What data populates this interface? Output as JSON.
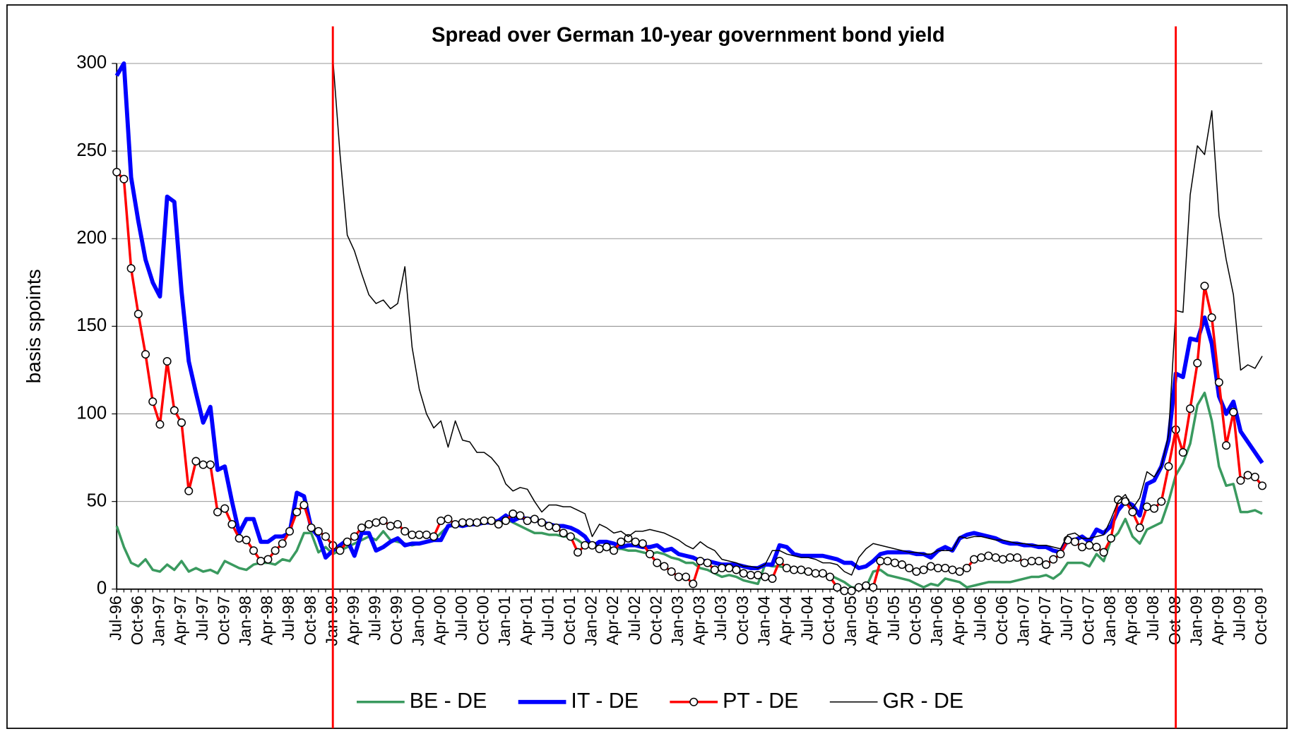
{
  "chart_data": {
    "type": "line",
    "title": "Spread over German 10-year government bond yield",
    "y_label": "basis spoints",
    "ylim": [
      0,
      300
    ],
    "yticks": [
      0,
      50,
      100,
      150,
      200,
      250,
      300
    ],
    "grid": true,
    "legend": "bottom",
    "vlines": [
      30,
      147
    ],
    "vline_color": "#ff0000",
    "categories": [
      "Jul-96",
      null,
      null,
      "Oct-96",
      null,
      null,
      "Jan-97",
      null,
      null,
      "Apr-97",
      null,
      null,
      "Jul-97",
      null,
      null,
      "Oct-97",
      null,
      null,
      "Jan-98",
      null,
      null,
      "Apr-98",
      null,
      null,
      "Jul-98",
      null,
      null,
      "Oct-98",
      null,
      null,
      "Jan-99",
      null,
      null,
      "Apr-99",
      null,
      null,
      "Jul-99",
      null,
      null,
      "Oct-99",
      null,
      null,
      "Jan-00",
      null,
      null,
      "Apr-00",
      null,
      null,
      "Jul-00",
      null,
      null,
      "Oct-00",
      null,
      null,
      "Jan-01",
      null,
      null,
      "Apr-01",
      null,
      null,
      "Jul-01",
      null,
      null,
      "Oct-01",
      null,
      null,
      "Jan-02",
      null,
      null,
      "Apr-02",
      null,
      null,
      "Jul-02",
      null,
      null,
      "Oct-02",
      null,
      null,
      "Jan-03",
      null,
      null,
      "Apr-03",
      null,
      null,
      "Jul-03",
      null,
      null,
      "Oct-03",
      null,
      null,
      "Jan-04",
      null,
      null,
      "Apr-04",
      null,
      null,
      "Jul-04",
      null,
      null,
      "Oct-04",
      null,
      null,
      "Jan-05",
      null,
      null,
      "Apr-05",
      null,
      null,
      "Jul-05",
      null,
      null,
      "Oct-05",
      null,
      null,
      "Jan-06",
      null,
      null,
      "Apr-06",
      null,
      null,
      "Jul-06",
      null,
      null,
      "Oct-06",
      null,
      null,
      "Jan-07",
      null,
      null,
      "Apr-07",
      null,
      null,
      "Jul-07",
      null,
      null,
      "Oct-07",
      null,
      null,
      "Jan-08",
      null,
      null,
      "Apr-08",
      null,
      null,
      "Jul-08",
      null,
      null,
      "Oct-08",
      null,
      null,
      "Jan-09",
      null,
      null,
      "Apr-09",
      null,
      null,
      "Jul-09",
      null,
      null,
      "Oct-09"
    ],
    "series": [
      {
        "name": "BE - DE",
        "color": "#3a9a5f",
        "width": 3,
        "markers": false,
        "values": [
          36,
          24,
          15,
          13,
          17,
          11,
          10,
          14,
          11,
          16,
          10,
          12,
          10,
          11,
          9,
          16,
          14,
          12,
          11,
          14,
          15,
          15,
          14,
          17,
          16,
          22,
          32,
          32,
          21,
          24,
          20,
          22,
          24,
          26,
          28,
          30,
          28,
          33,
          28,
          27,
          26,
          25,
          26,
          27,
          28,
          32,
          36,
          36,
          37,
          38,
          38,
          38,
          38,
          39,
          40,
          38,
          36,
          34,
          32,
          32,
          31,
          31,
          30,
          30,
          28,
          25,
          24,
          24,
          24,
          23,
          23,
          22,
          22,
          21,
          20,
          21,
          20,
          18,
          17,
          15,
          15,
          12,
          11,
          9,
          7,
          8,
          7,
          5,
          4,
          3,
          14,
          13,
          13,
          12,
          11,
          10,
          9,
          9,
          8,
          8,
          6,
          4,
          1,
          1,
          1,
          10,
          11,
          8,
          7,
          6,
          5,
          3,
          1,
          3,
          2,
          6,
          5,
          4,
          1,
          2,
          3,
          4,
          4,
          4,
          4,
          5,
          6,
          7,
          7,
          8,
          6,
          9,
          15,
          15,
          15,
          13,
          20,
          16,
          28,
          32,
          40,
          30,
          26,
          34,
          36,
          38,
          50,
          65,
          72,
          83,
          105,
          112,
          96,
          70,
          59,
          60,
          44,
          44,
          45,
          43
        ]
      },
      {
        "name": "IT - DE",
        "color": "#0000ff",
        "width": 5,
        "markers": false,
        "values": [
          293,
          300,
          235,
          210,
          188,
          175,
          167,
          224,
          221,
          170,
          130,
          112,
          95,
          104,
          68,
          70,
          50,
          32,
          40,
          40,
          27,
          27,
          30,
          30,
          32,
          55,
          53,
          35,
          30,
          18,
          22,
          25,
          28,
          19,
          32,
          32,
          22,
          24,
          27,
          29,
          25,
          26,
          26,
          27,
          28,
          28,
          36,
          37,
          36,
          37,
          37,
          38,
          38,
          39,
          42,
          39,
          41,
          40,
          40,
          38,
          37,
          36,
          36,
          35,
          33,
          30,
          24,
          27,
          27,
          26,
          24,
          25,
          25,
          24,
          24,
          25,
          22,
          23,
          20,
          19,
          18,
          16,
          16,
          15,
          14,
          14,
          14,
          13,
          12,
          12,
          14,
          14,
          25,
          24,
          20,
          19,
          19,
          19,
          19,
          18,
          17,
          15,
          15,
          12,
          13,
          16,
          20,
          21,
          21,
          21,
          21,
          20,
          20,
          18,
          22,
          24,
          22,
          29,
          31,
          32,
          31,
          30,
          29,
          27,
          26,
          26,
          25,
          25,
          24,
          24,
          22,
          21,
          28,
          28,
          30,
          27,
          34,
          32,
          36,
          45,
          50,
          48,
          42,
          60,
          62,
          70,
          85,
          123,
          121,
          143,
          142,
          155,
          140,
          110,
          100,
          107,
          90,
          84,
          78,
          72
        ]
      },
      {
        "name": "PT - DE",
        "color": "#ff0000",
        "width": 3,
        "markers": true,
        "values": [
          238,
          234,
          183,
          157,
          134,
          107,
          94,
          130,
          102,
          95,
          56,
          73,
          71,
          71,
          44,
          46,
          37,
          29,
          28,
          22,
          16,
          17,
          22,
          26,
          33,
          44,
          48,
          35,
          33,
          30,
          25,
          22,
          27,
          30,
          35,
          37,
          38,
          39,
          36,
          37,
          33,
          31,
          31,
          31,
          30,
          39,
          40,
          37,
          38,
          38,
          38,
          39,
          39,
          37,
          39,
          43,
          42,
          39,
          40,
          38,
          36,
          35,
          32,
          30,
          21,
          25,
          25,
          23,
          24,
          22,
          27,
          29,
          27,
          26,
          20,
          15,
          13,
          10,
          7,
          7,
          3,
          16,
          15,
          11,
          12,
          12,
          11,
          9,
          8,
          8,
          7,
          6,
          16,
          12,
          11,
          11,
          10,
          9,
          9,
          7,
          1,
          -1,
          -1,
          1,
          2,
          1,
          16,
          16,
          15,
          14,
          12,
          10,
          11,
          13,
          12,
          12,
          11,
          10,
          12,
          17,
          18,
          19,
          18,
          17,
          18,
          18,
          15,
          16,
          16,
          14,
          17,
          20,
          28,
          27,
          24,
          25,
          24,
          21,
          29,
          51,
          50,
          44,
          35,
          47,
          46,
          50,
          70,
          91,
          78,
          103,
          129,
          173,
          155,
          118,
          82,
          101,
          62,
          65,
          64,
          59
        ]
      },
      {
        "name": "GR - DE",
        "color": "#000000",
        "width": 1.3,
        "markers": false,
        "values": [
          null,
          null,
          null,
          null,
          null,
          null,
          null,
          null,
          null,
          null,
          null,
          null,
          null,
          null,
          null,
          null,
          null,
          null,
          null,
          null,
          null,
          null,
          null,
          null,
          null,
          null,
          null,
          null,
          null,
          null,
          303,
          248,
          202,
          193,
          180,
          168,
          163,
          165,
          160,
          163,
          184,
          138,
          114,
          100,
          92,
          96,
          81,
          96,
          85,
          84,
          78,
          78,
          75,
          70,
          60,
          56,
          58,
          57,
          50,
          44,
          48,
          48,
          47,
          47,
          45,
          43,
          30,
          37,
          35,
          32,
          33,
          30,
          33,
          33,
          34,
          33,
          32,
          30,
          28,
          25,
          23,
          27,
          24,
          22,
          17,
          16,
          15,
          13,
          13,
          12,
          14,
          22,
          22,
          20,
          19,
          18,
          18,
          17,
          15,
          15,
          14,
          10,
          8,
          18,
          23,
          26,
          25,
          24,
          23,
          22,
          21,
          21,
          20,
          20,
          22,
          22,
          22,
          30,
          29,
          30,
          30,
          29,
          28,
          28,
          27,
          26,
          26,
          25,
          25,
          25,
          24,
          23,
          31,
          32,
          29,
          29,
          30,
          31,
          40,
          50,
          54,
          46,
          52,
          67,
          64,
          70,
          88,
          159,
          158,
          225,
          253,
          248,
          273,
          213,
          188,
          168,
          125,
          128,
          126,
          133
        ]
      }
    ]
  }
}
